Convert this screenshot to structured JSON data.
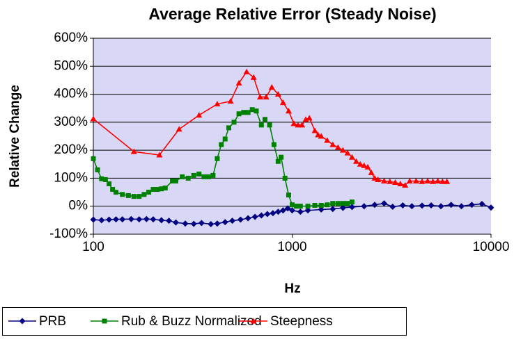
{
  "chart_data": {
    "type": "line",
    "title": "Average Relative Error (Steady Noise)",
    "x_label": "Hz",
    "y_label": "Relative Change",
    "x_scale": "log",
    "xlim": [
      100,
      10000
    ],
    "xticks": [
      100,
      1000,
      10000
    ],
    "ylim": [
      -100,
      600
    ],
    "yticks": [
      {
        "value": -100,
        "label": "-100%"
      },
      {
        "value": 0,
        "label": "0%"
      },
      {
        "value": 100,
        "label": "100%"
      },
      {
        "value": 200,
        "label": "200%"
      },
      {
        "value": 300,
        "label": "300%"
      },
      {
        "value": 400,
        "label": "400%"
      },
      {
        "value": 500,
        "label": "500%"
      },
      {
        "value": 600,
        "label": "600%"
      }
    ],
    "grid": true,
    "plot_background": "#d8d8f6",
    "legend": "bottom",
    "series": [
      {
        "name": "PRB",
        "color": "#000080",
        "marker": "diamond",
        "x": [
          100,
          110,
          120,
          130,
          140,
          155,
          170,
          185,
          200,
          220,
          240,
          260,
          290,
          320,
          350,
          390,
          420,
          460,
          500,
          550,
          600,
          650,
          700,
          750,
          800,
          850,
          900,
          950,
          1000,
          1100,
          1200,
          1400,
          1600,
          1800,
          2000,
          2300,
          2600,
          2900,
          3200,
          3600,
          4000,
          4500,
          5000,
          5600,
          6300,
          7100,
          8000,
          9000,
          10000
        ],
        "values": [
          -48,
          -50,
          -48,
          -47,
          -47,
          -46,
          -47,
          -46,
          -47,
          -50,
          -52,
          -58,
          -62,
          -63,
          -60,
          -64,
          -62,
          -57,
          -52,
          -48,
          -43,
          -38,
          -33,
          -28,
          -25,
          -20,
          -15,
          -8,
          -15,
          -20,
          -15,
          -12,
          -10,
          -6,
          -3,
          0,
          5,
          10,
          -2,
          3,
          0,
          2,
          3,
          0,
          5,
          0,
          5,
          8,
          -5
        ]
      },
      {
        "name": "Rub & Buzz Normalized",
        "color": "#008000",
        "marker": "square",
        "x": [
          100,
          105,
          110,
          115,
          120,
          125,
          130,
          140,
          150,
          160,
          170,
          180,
          190,
          200,
          210,
          220,
          230,
          250,
          260,
          280,
          300,
          320,
          340,
          360,
          380,
          400,
          420,
          440,
          460,
          480,
          510,
          540,
          570,
          600,
          630,
          660,
          700,
          730,
          770,
          810,
          850,
          880,
          920,
          960,
          1000,
          1050,
          1100,
          1200,
          1300,
          1400,
          1500,
          1600,
          1700,
          1800,
          1900,
          2000
        ],
        "values": [
          170,
          130,
          98,
          95,
          80,
          60,
          50,
          42,
          38,
          35,
          35,
          42,
          50,
          60,
          60,
          62,
          65,
          90,
          90,
          105,
          100,
          110,
          115,
          105,
          105,
          110,
          170,
          220,
          240,
          280,
          300,
          330,
          335,
          335,
          345,
          340,
          290,
          310,
          290,
          220,
          160,
          175,
          100,
          40,
          5,
          0,
          0,
          0,
          3,
          3,
          5,
          10,
          10,
          10,
          10,
          15
        ]
      },
      {
        "name": "Steepness",
        "color": "#ff0000",
        "marker": "triangle",
        "x": [
          100,
          160,
          215,
          270,
          340,
          420,
          490,
          540,
          590,
          640,
          690,
          740,
          790,
          850,
          900,
          960,
          1020,
          1070,
          1120,
          1170,
          1220,
          1300,
          1350,
          1400,
          1500,
          1600,
          1700,
          1800,
          1900,
          2000,
          2100,
          2200,
          2300,
          2400,
          2500,
          2600,
          2700,
          2900,
          3100,
          3300,
          3500,
          3700,
          3900,
          4200,
          4500,
          4800,
          5100,
          5400,
          5700,
          6000
        ],
        "values": [
          312,
          195,
          183,
          275,
          325,
          365,
          375,
          440,
          480,
          460,
          390,
          390,
          425,
          400,
          370,
          340,
          295,
          290,
          290,
          310,
          315,
          270,
          255,
          250,
          235,
          220,
          210,
          200,
          190,
          175,
          160,
          150,
          145,
          140,
          120,
          100,
          95,
          90,
          88,
          85,
          80,
          75,
          90,
          90,
          88,
          90,
          88,
          90,
          88,
          88
        ]
      }
    ]
  }
}
